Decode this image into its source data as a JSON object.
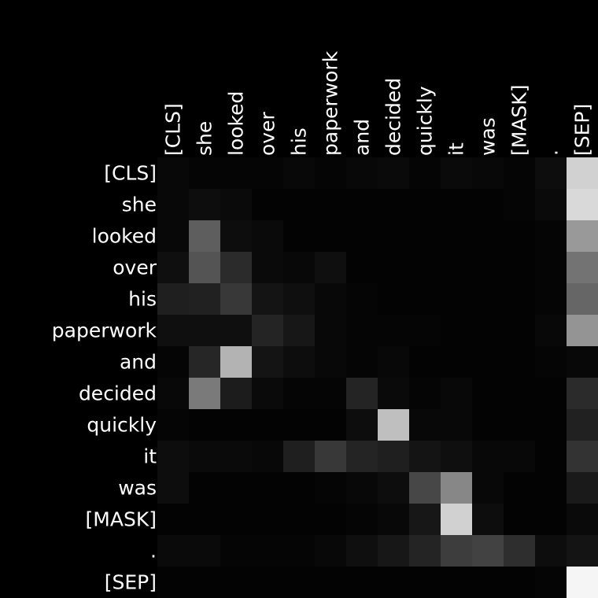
{
  "chart_data": {
    "type": "heatmap",
    "title": "",
    "xlabel": "",
    "ylabel": "",
    "colormap": "grayscale",
    "value_range": [
      0,
      1
    ],
    "grid": false,
    "x_tokens": [
      "[CLS]",
      "she",
      "looked",
      "over",
      "his",
      "paperwork",
      "and",
      "decided",
      "quickly",
      "it",
      "was",
      "[MASK]",
      ".",
      "[SEP]"
    ],
    "y_tokens": [
      "[CLS]",
      "she",
      "looked",
      "over",
      "his",
      "paperwork",
      "and",
      "decided",
      "quickly",
      "it",
      "was",
      "[MASK]",
      ".",
      "[SEP]"
    ],
    "values": [
      [
        0.03,
        0.02,
        0.02,
        0.02,
        0.03,
        0.02,
        0.03,
        0.04,
        0.02,
        0.04,
        0.03,
        0.02,
        0.05,
        0.82
      ],
      [
        0.03,
        0.05,
        0.04,
        0.01,
        0.01,
        0.01,
        0.01,
        0.01,
        0.01,
        0.01,
        0.01,
        0.02,
        0.04,
        0.85
      ],
      [
        0.03,
        0.37,
        0.05,
        0.04,
        0.01,
        0.01,
        0.01,
        0.01,
        0.01,
        0.01,
        0.01,
        0.01,
        0.02,
        0.6
      ],
      [
        0.06,
        0.33,
        0.17,
        0.04,
        0.03,
        0.06,
        0.01,
        0.01,
        0.01,
        0.01,
        0.01,
        0.01,
        0.02,
        0.45
      ],
      [
        0.12,
        0.13,
        0.22,
        0.08,
        0.06,
        0.03,
        0.02,
        0.01,
        0.01,
        0.01,
        0.01,
        0.01,
        0.02,
        0.4
      ],
      [
        0.06,
        0.06,
        0.06,
        0.14,
        0.09,
        0.03,
        0.02,
        0.02,
        0.02,
        0.01,
        0.01,
        0.01,
        0.03,
        0.58
      ],
      [
        0.02,
        0.15,
        0.7,
        0.08,
        0.05,
        0.03,
        0.02,
        0.03,
        0.01,
        0.01,
        0.01,
        0.01,
        0.02,
        0.03
      ],
      [
        0.03,
        0.48,
        0.11,
        0.04,
        0.02,
        0.02,
        0.14,
        0.04,
        0.02,
        0.03,
        0.01,
        0.01,
        0.01,
        0.17
      ],
      [
        0.02,
        0.01,
        0.01,
        0.01,
        0.01,
        0.01,
        0.05,
        0.75,
        0.03,
        0.03,
        0.01,
        0.01,
        0.01,
        0.13
      ],
      [
        0.05,
        0.04,
        0.04,
        0.03,
        0.12,
        0.22,
        0.14,
        0.12,
        0.08,
        0.06,
        0.03,
        0.03,
        0.01,
        0.2
      ],
      [
        0.05,
        0.01,
        0.01,
        0.01,
        0.01,
        0.02,
        0.03,
        0.05,
        0.28,
        0.53,
        0.03,
        0.01,
        0.01,
        0.1
      ],
      [
        0.01,
        0.01,
        0.01,
        0.01,
        0.01,
        0.01,
        0.02,
        0.03,
        0.09,
        0.82,
        0.05,
        0.01,
        0.01,
        0.04
      ],
      [
        0.04,
        0.04,
        0.02,
        0.02,
        0.02,
        0.03,
        0.06,
        0.09,
        0.14,
        0.24,
        0.26,
        0.18,
        0.05,
        0.08
      ],
      [
        0.01,
        0.01,
        0.01,
        0.01,
        0.01,
        0.01,
        0.01,
        0.01,
        0.01,
        0.01,
        0.01,
        0.01,
        0.02,
        0.96
      ]
    ]
  }
}
